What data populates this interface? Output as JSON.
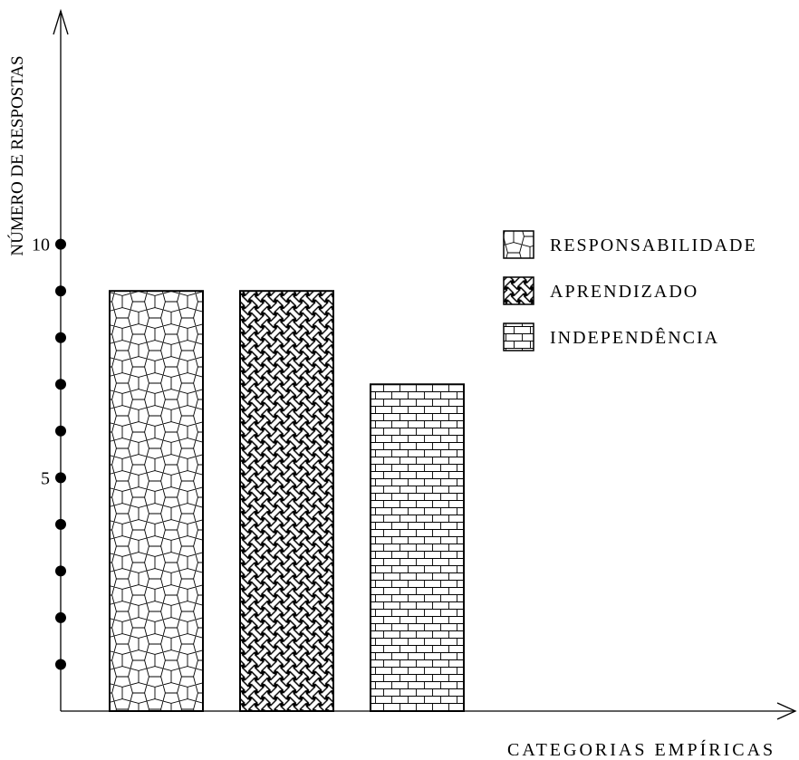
{
  "chart_data": {
    "type": "bar",
    "categories": [
      "RESPONSABILIDADE",
      "APRENDIZADO",
      "INDEPENDÊNCIA"
    ],
    "values": [
      9,
      9,
      7
    ],
    "xlabel": "CATEGORIAS EMPÍRICAS",
    "ylabel": "NÚMERO DE RESPOSTAS",
    "ylim": [
      0,
      15
    ],
    "yticks": [
      1,
      2,
      3,
      4,
      5,
      6,
      7,
      8,
      9,
      10
    ],
    "ytick_labels": [
      {
        "value": 5,
        "label": "5"
      },
      {
        "value": 10,
        "label": "10"
      }
    ],
    "legend_position": "right",
    "grid": false,
    "fill_patterns": [
      "cairo-pentagon",
      "basket-weave",
      "brick"
    ],
    "colors": {
      "ink": "#000000",
      "background": "#ffffff"
    }
  }
}
